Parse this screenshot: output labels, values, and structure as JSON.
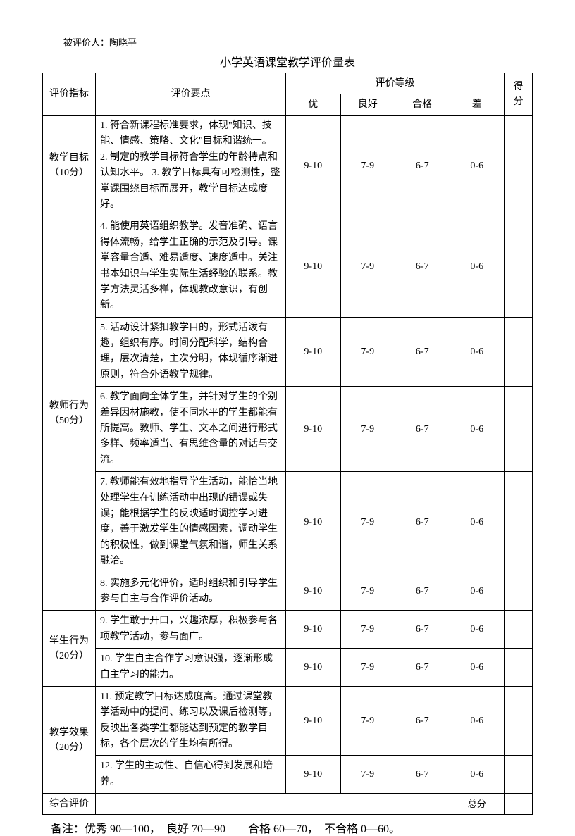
{
  "evaluatee_label": "被评价人：陶晓平",
  "title": "小学英语课堂教学评价量表",
  "headers": {
    "indicator": "评价指标",
    "points": "评价要点",
    "grade_group": "评价等级",
    "score": "得分",
    "excellent": "优",
    "good": "良好",
    "pass": "合格",
    "poor": "差"
  },
  "sections": [
    {
      "indicator_name": "教学目标",
      "indicator_weight": "（10分）",
      "rows": [
        {
          "points": "1. 符合新课程标准要求，体现\"知识、技能、情感、策略、文化\"目标和谐统一。\n2. 制定的教学目标符合学生的年龄特点和认知水平。\n3. 教学目标具有可检测性，整堂课围绕目标而展开，教学目标达成度好。",
          "grades": [
            "9-10",
            "7-9",
            "6-7",
            "0-6"
          ]
        }
      ]
    },
    {
      "indicator_name": "教师行为",
      "indicator_weight": "（50分）",
      "rows": [
        {
          "points": "4. 能使用英语组织教学。发音准确、语言得体流畅，给学生正确的示范及引导。课堂容量合适、难易适度、速度适中。关注书本知识与学生实际生活经验的联系。教学方法灵活多样，体现教改意识，有创新。",
          "grades": [
            "9-10",
            "7-9",
            "6-7",
            "0-6"
          ]
        },
        {
          "points": "5. 活动设计紧扣教学目的，形式活泼有趣，组织有序。时间分配科学，结构合理，层次清楚，主次分明，体现循序渐进原则，符合外语教学规律。",
          "grades": [
            "9-10",
            "7-9",
            "6-7",
            "0-6"
          ]
        },
        {
          "points": "6. 教学面向全体学生，并针对学生的个别差异因材施教，使不同水平的学生都能有所提高。教师、学生、文本之间进行形式多样、频率适当、有思维含量的对话与交流。",
          "grades": [
            "9-10",
            "7-9",
            "6-7",
            "0-6"
          ]
        },
        {
          "points": "7. 教师能有效地指导学生活动，能恰当地处理学生在训练活动中出现的错误或失误；能根据学生的反映适时调控学习进度，善于激发学生的情感因素，调动学生的积极性，做到课堂气氛和谐，师生关系融洽。",
          "grades": [
            "9-10",
            "7-9",
            "6-7",
            "0-6"
          ]
        },
        {
          "points": "8. 实施多元化评价，适时组织和引导学生参与自主与合作评价活动。",
          "grades": [
            "9-10",
            "7-9",
            "6-7",
            "0-6"
          ]
        }
      ]
    },
    {
      "indicator_name": "学生行为",
      "indicator_weight": "（20分）",
      "rows": [
        {
          "points": "9. 学生敢于开口，兴趣浓厚，积极参与各项教学活动，参与面广。",
          "grades": [
            "9-10",
            "7-9",
            "6-7",
            "0-6"
          ]
        },
        {
          "points": "10. 学生自主合作学习意识强，逐渐形成自主学习的能力。",
          "grades": [
            "9-10",
            "7-9",
            "6-7",
            "0-6"
          ]
        }
      ]
    },
    {
      "indicator_name": "教学效果",
      "indicator_weight": "（20分）",
      "rows": [
        {
          "points": "11. 预定教学目标达成度高。通过课堂教学活动中的提问、练习以及课后检测等，反映出各类学生都能达到预定的教学目标，各个层次的学生均有所得。",
          "grades": [
            "9-10",
            "7-9",
            "6-7",
            "0-6"
          ]
        },
        {
          "points": "12. 学生的主动性、自信心得到发展和培养。",
          "grades": [
            "9-10",
            "7-9",
            "6-7",
            "0-6"
          ]
        }
      ]
    }
  ],
  "summary_label": "综合评价",
  "total_label": "总分",
  "note": "备注：优秀 90—100，　良好 70—90　　合格 60—70，　不合格 0—60。"
}
